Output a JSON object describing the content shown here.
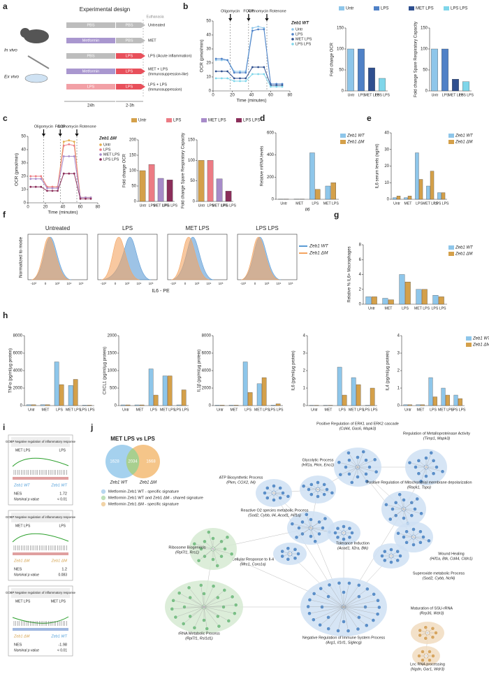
{
  "panel_letters": [
    "a",
    "b",
    "c",
    "d",
    "e",
    "f",
    "g",
    "h",
    "i",
    "j"
  ],
  "design": {
    "title": "Experimental design",
    "euthanasia": "Euthanasia",
    "in_vivo": "In vivo",
    "ex_vivo": "Ex vivo",
    "t1": "24h",
    "t2": "2-3h",
    "rows": [
      {
        "left": "PBS",
        "left_color": "#bdbdbd",
        "right": "PBS",
        "right_color": "#bdbdbd",
        "outcome": "Untreated",
        "note": ""
      },
      {
        "left": "Metformin",
        "left_color": "#a997cf",
        "right": "PBS",
        "right_color": "#bdbdbd",
        "outcome": "MET",
        "note": ""
      },
      {
        "left": "PBS",
        "left_color": "#bdbdbd",
        "right": "LPS",
        "right_color": "#e8505b",
        "outcome": "LPS (Acute inflammation)",
        "note": ""
      },
      {
        "left": "Metformin",
        "left_color": "#a997cf",
        "right": "LPS",
        "right_color": "#e8505b",
        "outcome": "MET + LPS",
        "note": "(Immunosuppression-like)"
      },
      {
        "left": "LPS",
        "left_color": "#f2a0a6",
        "right": "LPS",
        "right_color": "#e8505b",
        "outcome": "LPS + LPS",
        "note": "(Immunosuppression)"
      }
    ]
  },
  "chart_data": [
    {
      "type": "line",
      "ylabel": "OCR (pmol/min)",
      "xlabel": "Time (minutes)",
      "legend": "upper right",
      "legend_title": "Zeb1 WT",
      "x": [
        3,
        9,
        15,
        22,
        28,
        34,
        41,
        47,
        53,
        60,
        66,
        72
      ],
      "xlim": [
        0,
        80
      ],
      "xticks": [
        0,
        20,
        40,
        60,
        80
      ],
      "ylim": [
        0,
        50
      ],
      "yticks": [
        0,
        10,
        20,
        30,
        40,
        50
      ],
      "injections": [
        {
          "label": "Oligomycin",
          "x": 18
        },
        {
          "label": "FCCP",
          "x": 37
        },
        {
          "label": "Antinomycin Rotenone",
          "x": 56
        }
      ],
      "series": [
        {
          "name": "Untr",
          "color": "#8ec6ea",
          "values": [
            22,
            22,
            22,
            14,
            14,
            14,
            45,
            46,
            45,
            5,
            5,
            5
          ]
        },
        {
          "name": "LPS",
          "color": "#4f81c7",
          "values": [
            23,
            23,
            22,
            13,
            13,
            13,
            43,
            44,
            44,
            5,
            5,
            5
          ]
        },
        {
          "name": "MET LPS",
          "color": "#2e4f8f",
          "values": [
            14,
            14,
            14,
            9,
            9,
            9,
            17,
            17,
            17,
            4,
            4,
            4
          ]
        },
        {
          "name": "LPS LPS",
          "color": "#7fd6ea",
          "values": [
            9,
            9,
            9,
            7,
            7,
            7,
            12,
            12,
            12,
            3,
            3,
            3
          ]
        }
      ]
    },
    {
      "type": "bar",
      "ylabel": "Fold change OCR",
      "legend": "top",
      "categories": [
        "Untr",
        "LPS",
        "MET LPS",
        "LPS LPS"
      ],
      "ylim": [
        0,
        150
      ],
      "yticks": [
        0,
        50,
        100,
        150
      ],
      "series": [
        {
          "name": "Untr",
          "colors": [
            "#8ec6ea",
            "#4f81c7",
            "#2e4f8f",
            "#7fd6ea"
          ],
          "values": [
            100,
            100,
            55,
            30
          ]
        }
      ],
      "legend_names": [
        "Untr",
        "LPS",
        "MET LPS",
        "LPS LPS"
      ]
    },
    {
      "type": "bar",
      "ylabel": "Fold change Spare Respiratory Capacity",
      "categories": [
        "Untr",
        "LPS",
        "MET LPS",
        "LPS LPS"
      ],
      "ylim": [
        0,
        150
      ],
      "yticks": [
        0,
        50,
        100,
        150
      ],
      "series": [
        {
          "name": "",
          "colors": [
            "#8ec6ea",
            "#4f81c7",
            "#2e4f8f",
            "#7fd6ea"
          ],
          "values": [
            100,
            100,
            28,
            22
          ]
        }
      ]
    },
    {
      "type": "line",
      "ylabel": "OCR (pmol/min)",
      "xlabel": "Time (minutes)",
      "legend": "upper right",
      "legend_title": "Zeb1 ΔM",
      "x": [
        3,
        9,
        15,
        22,
        28,
        34,
        41,
        47,
        53,
        60,
        66,
        72
      ],
      "xlim": [
        0,
        80
      ],
      "xticks": [
        0,
        20,
        40,
        60,
        80
      ],
      "ylim": [
        0,
        50
      ],
      "yticks": [
        0,
        10,
        20,
        30,
        40,
        50
      ],
      "injections": [
        {
          "label": "Oligomycin",
          "x": 18
        },
        {
          "label": "FCCP",
          "x": 37
        },
        {
          "label": "Antinomycin Rotenone",
          "x": 56
        }
      ],
      "series": [
        {
          "name": "Untr",
          "color": "#e3ad4c",
          "values": [
            20,
            20,
            20,
            12,
            12,
            12,
            46,
            47,
            46,
            4,
            4,
            4
          ]
        },
        {
          "name": "LPS",
          "color": "#ec7b84",
          "values": [
            20,
            20,
            20,
            12,
            12,
            12,
            43,
            44,
            43,
            4,
            4,
            4
          ]
        },
        {
          "name": "MET LPS",
          "color": "#a78bc9",
          "values": [
            18,
            18,
            18,
            11,
            11,
            11,
            35,
            35,
            35,
            4,
            4,
            4
          ]
        },
        {
          "name": "LPS LPS",
          "color": "#8b2e5a",
          "values": [
            12,
            12,
            12,
            9,
            9,
            9,
            22,
            22,
            22,
            3,
            3,
            3
          ]
        }
      ]
    },
    {
      "type": "bar",
      "ylabel": "Fold change OCR",
      "legend": "top",
      "categories": [
        "Untr",
        "LPS",
        "MET LPS",
        "LPS LPS"
      ],
      "ylim": [
        0,
        200
      ],
      "yticks": [
        0,
        50,
        100,
        150,
        200
      ],
      "series": [
        {
          "name": "",
          "colors": [
            "#d4a04a",
            "#ec7b84",
            "#a78bc9",
            "#8b2e5a"
          ],
          "values": [
            100,
            120,
            75,
            70
          ]
        }
      ],
      "legend_names": [
        "Untr",
        "LPS",
        "MET LPS",
        "LPS LPS"
      ]
    },
    {
      "type": "bar",
      "ylabel": "Fold change Spare Respiratory Capacity",
      "categories": [
        "Untr",
        "LPS",
        "MET LPS",
        "LPS LPS"
      ],
      "ylim": [
        0,
        150
      ],
      "yticks": [
        0,
        50,
        100,
        150
      ],
      "series": [
        {
          "name": "",
          "colors": [
            "#d4a04a",
            "#ec7b84",
            "#a78bc9",
            "#8b2e5a"
          ],
          "values": [
            100,
            100,
            55,
            25
          ]
        }
      ]
    },
    {
      "type": "bar",
      "ylabel": "Relative mRNA levels",
      "xlabel": "Il6",
      "legend": "right",
      "categories": [
        "Untr",
        "MET",
        "LPS",
        "MET LPS"
      ],
      "ylim": [
        0,
        600
      ],
      "yticks": [
        0,
        200,
        400,
        600
      ],
      "series": [
        {
          "name": "Zeb1 WT",
          "color": "#8ec6ea",
          "values": [
            2,
            2,
            420,
            120
          ]
        },
        {
          "name": "Zeb1 ΔM",
          "color": "#d4a04a",
          "values": [
            2,
            2,
            90,
            150
          ]
        }
      ]
    },
    {
      "type": "bar",
      "ylabel": "IL6 serum levels (ng/ml)",
      "legend": "right",
      "categories": [
        "Untr",
        "MET",
        "LPS",
        "MET LPS",
        "LPS LPS"
      ],
      "ylim": [
        0,
        40
      ],
      "yticks": [
        0,
        10,
        20,
        30,
        40
      ],
      "series": [
        {
          "name": "Zeb1 WT",
          "color": "#8ec6ea",
          "values": [
            1,
            1,
            28,
            8,
            4
          ]
        },
        {
          "name": "Zeb1 ΔM",
          "color": "#d4a04a",
          "values": [
            2,
            2,
            12,
            17,
            4
          ]
        }
      ]
    },
    {
      "type": "bar",
      "ylabel": "Relative % IL6+ Macrophages",
      "legend": "right",
      "categories": [
        "Untr",
        "MET",
        "LPS",
        "MET LPS",
        "LPS LPS"
      ],
      "ylim": [
        0,
        8
      ],
      "yticks": [
        0,
        2,
        4,
        6,
        8
      ],
      "series": [
        {
          "name": "Zeb1 WT",
          "color": "#8ec6ea",
          "values": [
            1,
            0.8,
            4,
            2,
            1.2
          ]
        },
        {
          "name": "Zeb1 ΔM",
          "color": "#d4a04a",
          "values": [
            1,
            0.6,
            3,
            2,
            1
          ]
        }
      ]
    },
    {
      "type": "bar",
      "ylabel": "TNFα (pg/ml/µg protein)",
      "categories": [
        "Untr",
        "MET",
        "LPS",
        "MET LPS",
        "LPS LPS"
      ],
      "ylim": [
        0,
        8000
      ],
      "yticks": [
        0,
        2000,
        4000,
        6000,
        8000
      ],
      "series": [
        {
          "name": "Zeb1 WT",
          "color": "#8ec6ea",
          "values": [
            100,
            100,
            5000,
            2300,
            50
          ]
        },
        {
          "name": "Zeb1 ΔM",
          "color": "#d4a04a",
          "values": [
            100,
            100,
            2400,
            3000,
            50
          ]
        }
      ]
    },
    {
      "type": "bar",
      "ylabel": "CXCL1 (pg/ml/µg protein)",
      "categories": [
        "Untr",
        "MET",
        "LPS",
        "MET LPS",
        "LPS LPS"
      ],
      "ylim": [
        0,
        2000
      ],
      "yticks": [
        0,
        500,
        1000,
        1500,
        2000
      ],
      "series": [
        {
          "name": "Zeb1 WT",
          "color": "#8ec6ea",
          "values": [
            20,
            20,
            1050,
            850,
            20
          ]
        },
        {
          "name": "Zeb1 ΔM",
          "color": "#d4a04a",
          "values": [
            20,
            20,
            300,
            850,
            450
          ]
        }
      ]
    },
    {
      "type": "bar",
      "ylabel": "IL1β (pg/ml/µg protein)",
      "categories": [
        "Untr",
        "MET",
        "LPS",
        "MET LPS",
        "LPS LPS"
      ],
      "ylim": [
        0,
        8000
      ],
      "yticks": [
        0,
        2000,
        4000,
        6000,
        8000
      ],
      "series": [
        {
          "name": "Zeb1 WT",
          "color": "#8ec6ea",
          "values": [
            50,
            50,
            5000,
            2500,
            50
          ]
        },
        {
          "name": "Zeb1 ΔM",
          "color": "#d4a04a",
          "values": [
            50,
            50,
            1500,
            3200,
            200
          ]
        }
      ]
    },
    {
      "type": "bar",
      "ylabel": "IL6 (pg/ml/µg protein)",
      "categories": [
        "Untr",
        "MET",
        "LPS",
        "MET LPS",
        "LPS LPS"
      ],
      "ylim": [
        0,
        4
      ],
      "yticks": [
        0,
        1,
        2,
        3,
        4
      ],
      "series": [
        {
          "name": "Zeb1 WT",
          "color": "#8ec6ea",
          "values": [
            0.02,
            0.02,
            2.2,
            1.6,
            0.02
          ]
        },
        {
          "name": "Zeb1 ΔM",
          "color": "#d4a04a",
          "values": [
            0.02,
            0.02,
            0.6,
            1.2,
            1
          ]
        }
      ]
    },
    {
      "type": "bar",
      "ylabel": "IL4 (pg/ml/µg protein)",
      "legend": "upper right",
      "categories": [
        "Untr",
        "MET",
        "LPS",
        "MET LPS",
        "LPS LPS"
      ],
      "ylim": [
        0,
        4
      ],
      "yticks": [
        0,
        1,
        2,
        3,
        4
      ],
      "series": [
        {
          "name": "Zeb1 WT",
          "color": "#8ec6ea",
          "values": [
            0.05,
            0.05,
            1.6,
            1,
            0.6
          ]
        },
        {
          "name": "Zeb1 ΔM",
          "color": "#d4a04a",
          "values": [
            0.05,
            0.05,
            0.5,
            0.6,
            0.4
          ]
        }
      ]
    }
  ],
  "histograms": {
    "titles": [
      "Untreated",
      "LPS",
      "MET  LPS",
      "LPS  LPS"
    ],
    "ylabel": "Normalized to mode",
    "xlabel": "IL6 - PE",
    "xtick_labels": [
      "-10³",
      "0",
      "10³",
      "10⁴",
      "10⁵"
    ],
    "legend": [
      {
        "name": "Zeb1 WT",
        "color": "#5b9bd5"
      },
      {
        "name": "Zeb1 ΔM",
        "color": "#f4a460"
      }
    ]
  },
  "gsea": [
    {
      "title": "GOBP Negative regulation of inflammatory response",
      "left": "MET LPS",
      "right": "LPS",
      "bottom_left": "Zeb1 WT",
      "bottom_left_color": "#4a9bd8",
      "bottom_right": "Zeb1 WT",
      "bottom_right_color": "#4a9bd8",
      "nes_label": "NES",
      "nes": 1.72,
      "p_label": "Nominal p value",
      "p": "< 0.01"
    },
    {
      "title": "GOBP Negative regulation of inflammatory response",
      "left": "MET LPS",
      "right": "LPS",
      "bottom_left": "Zeb1 ΔM",
      "bottom_left_color": "#d4a04a",
      "bottom_right": "Zeb1 ΔM",
      "bottom_right_color": "#d4a04a",
      "nes_label": "NES",
      "nes": 1.2,
      "p_label": "Nominal p value",
      "p": 0.083
    },
    {
      "title": "GOBP Negative regulation of inflammatory response",
      "left": "MET LPS",
      "right": "MET LPS",
      "bottom_left": "Zeb1 ΔM",
      "bottom_left_color": "#d4a04a",
      "bottom_right": "Zeb1 WT",
      "bottom_right_color": "#4a9bd8",
      "nes_label": "NES",
      "nes": -1.98,
      "p_label": "Nominal p value",
      "p": "< 0.01"
    }
  ],
  "network": {
    "venn": {
      "title": "MET LPS vs LPS",
      "left": 1628,
      "middle": 2034,
      "right": 1668,
      "left_label": "Zeb1 WT",
      "right_label": "Zeb1 ΔM"
    },
    "legend": [
      {
        "text": "Metformin Zeb1 WT - specific signature",
        "color": "#b9d7ef"
      },
      {
        "text": "Metformin Zeb1 WT and Zeb1 ΔM - shared signature",
        "color": "#bfe0b8"
      },
      {
        "text": "Metformin Zeb1 ΔM - specific signature",
        "color": "#f1d3a6"
      }
    ],
    "clusters": [
      {
        "label": "Positive Regulation of ERK1 and ERK2 cascade",
        "genes": "(Cd44, Gas6, Mapk3)",
        "color": "#5b8fc9"
      },
      {
        "label": "Regulation of Metalloproteinase Activity",
        "genes": "(Timp1, Mapk3)",
        "color": "#5b8fc9"
      },
      {
        "label": "Glycolytic Process",
        "genes": "(Hif1a, Pkm, Eno1)",
        "color": "#5b8fc9"
      },
      {
        "label": "ATP Biosynthetic Process",
        "genes": "(Pkm, COX2, Il4)",
        "color": "#5b8fc9"
      },
      {
        "label": "Positive Regulation of Mitochondrial membrane depolarization",
        "genes": "(Rack1, Tspo)",
        "color": "#5b8fc9"
      },
      {
        "label": "Reactive O2 species metabolic Process",
        "genes": "(Sod2, Cybb, Il4, Acod1, Hif1a)",
        "color": "#5b8fc9"
      },
      {
        "label": "Cellular Response to Il-4",
        "genes": "(Mrc1, Coro1a)",
        "color": "#5b8fc9"
      },
      {
        "label": "Tolerance Induction",
        "genes": "(Acod1, Il2ra, Btk)",
        "color": "#5b8fc9"
      },
      {
        "label": "Wound Healing",
        "genes": "(Hif1a, Btk, Cd44, Cldn1)",
        "color": "#5b8fc9"
      },
      {
        "label": "Superoxide metabolic Process",
        "genes": "(Sod2, Cybb, Ncf4)",
        "color": "#5b8fc9"
      },
      {
        "label": "Ribosome Biogenesis",
        "genes": "(Rpl7l1, Rrs1)",
        "color": "#7bbf86"
      },
      {
        "label": "rRNA Metabolic Process",
        "genes": "(Rpl7l1, Rsl1d1)",
        "color": "#7bbf86"
      },
      {
        "label": "Negative Regulation of Immune System Process",
        "genes": "(Arg1, Il1rl1, Siglecg)",
        "color": "#5b8fc9"
      },
      {
        "label": "Maturation of SSU-rRNA",
        "genes": "(Rrp36, Wdr3)",
        "color": "#d7a661"
      },
      {
        "label": "Lnc RNA processing",
        "genes": "(Ngdn, Gar1, Wdr3)",
        "color": "#d7a661"
      }
    ]
  }
}
